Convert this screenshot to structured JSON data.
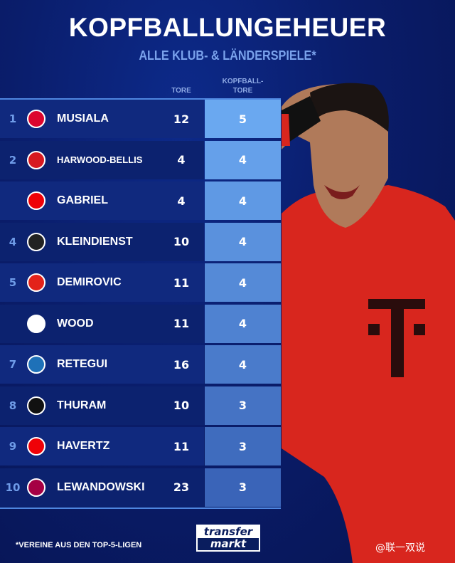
{
  "header": {
    "title": "KOPFBALLUNGEHEUER",
    "subtitle": "ALLE KLUB- & LÄNDERSPIELE*"
  },
  "columns": {
    "tore": "TORE",
    "kopf_line1": "KOPFBALL-",
    "kopf_line2": "TORE"
  },
  "rows": [
    {
      "rank": "1",
      "club": "bayern",
      "crest_color": "#dc052d",
      "name": "MUSIALA",
      "tore": "12",
      "kopf": "5"
    },
    {
      "rank": "2",
      "club": "southampton",
      "crest_color": "#d71920",
      "name": "HARWOOD-BELLIS",
      "tore": "4",
      "kopf": "4"
    },
    {
      "rank": "",
      "club": "arsenal",
      "crest_color": "#ef0107",
      "name": "GABRIEL",
      "tore": "4",
      "kopf": "4"
    },
    {
      "rank": "4",
      "club": "gladbach",
      "crest_color": "#222222",
      "name": "KLEINDIENST",
      "tore": "10",
      "kopf": "4"
    },
    {
      "rank": "5",
      "club": "stuttgart",
      "crest_color": "#e32219",
      "name": "DEMIROVIC",
      "tore": "11",
      "kopf": "4"
    },
    {
      "rank": "",
      "club": "nottingham-forest",
      "crest_color": "#ffffff",
      "name": "WOOD",
      "tore": "11",
      "kopf": "4"
    },
    {
      "rank": "7",
      "club": "atalanta",
      "crest_color": "#1e71b8",
      "name": "RETEGUI",
      "tore": "16",
      "kopf": "4"
    },
    {
      "rank": "8",
      "club": "inter",
      "crest_color": "#111111",
      "name": "THURAM",
      "tore": "10",
      "kopf": "3"
    },
    {
      "rank": "9",
      "club": "arsenal",
      "crest_color": "#ef0107",
      "name": "HAVERTZ",
      "tore": "11",
      "kopf": "3"
    },
    {
      "rank": "10",
      "club": "barcelona",
      "crest_color": "#a50044",
      "name": "LEWANDOWSKI",
      "tore": "23",
      "kopf": "3"
    }
  ],
  "footer": {
    "note": "*VEREINE AUS DEN TOP-5-LIGEN",
    "logo_line1": "transfer",
    "logo_line2": "markt",
    "watermark": "@联一双说"
  },
  "colors": {
    "accent": "#4e86e0",
    "kopf_top": "#6aa8f0",
    "kopf_bottom": "#3a64b8",
    "jersey": "#d8261e"
  },
  "chart_data": {
    "type": "table",
    "title": "KOPFBALLUNGEHEUER",
    "subtitle": "ALLE KLUB- & LÄNDERSPIELE*",
    "columns": [
      "TORE",
      "KOPFBALL-TORE"
    ],
    "categories": [
      "MUSIALA",
      "HARWOOD-BELLIS",
      "GABRIEL",
      "KLEINDIENST",
      "DEMIROVIC",
      "WOOD",
      "RETEGUI",
      "THURAM",
      "HAVERTZ",
      "LEWANDOWSKI"
    ],
    "series": [
      {
        "name": "TORE",
        "values": [
          12,
          4,
          4,
          10,
          11,
          11,
          16,
          10,
          11,
          23
        ]
      },
      {
        "name": "KOPFBALL-TORE",
        "values": [
          5,
          4,
          4,
          4,
          4,
          4,
          4,
          3,
          3,
          3
        ]
      }
    ]
  }
}
